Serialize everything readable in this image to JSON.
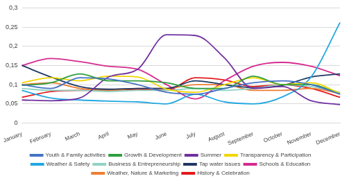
{
  "chart_data": {
    "type": "line",
    "categories": [
      "January",
      "February",
      "March",
      "April",
      "May",
      "June",
      "July",
      "August",
      "September",
      "October",
      "November",
      "December"
    ],
    "ylim": [
      0,
      0.3
    ],
    "yticks": [
      0,
      {
        "value": 0.05,
        "label": "0,05"
      },
      {
        "value": 0.1,
        "label": "0,1"
      },
      {
        "value": 0.15,
        "label": "0,15"
      },
      {
        "value": 0.2,
        "label": "0,2"
      },
      {
        "value": 0.25,
        "label": "0,25"
      },
      {
        "value": 0.3,
        "label": "0,3"
      }
    ],
    "grid": true,
    "legend": "bottom",
    "line_style": "smooth",
    "marker": "none",
    "series": [
      {
        "name": "Youth & Family activities",
        "color": "#4472c4",
        "values": [
          0.1,
          0.09,
          0.118,
          0.115,
          0.1,
          0.08,
          0.075,
          0.09,
          0.105,
          0.11,
          0.1,
          0.075
        ]
      },
      {
        "name": "Growth & Development",
        "color": "#2e9e3e",
        "values": [
          0.098,
          0.105,
          0.128,
          0.11,
          0.11,
          0.105,
          0.09,
          0.09,
          0.122,
          0.1,
          0.1,
          0.075
        ]
      },
      {
        "name": "Summer",
        "color": "#7030a0",
        "values": [
          0.06,
          0.058,
          0.065,
          0.12,
          0.14,
          0.23,
          0.228,
          0.17,
          0.09,
          0.095,
          0.058,
          0.048
        ]
      },
      {
        "name": "Transparency & Participation",
        "color": "#f2d600",
        "values": [
          0.105,
          0.118,
          0.11,
          0.122,
          0.12,
          0.088,
          0.08,
          0.1,
          0.118,
          0.1,
          0.105,
          0.077
        ]
      },
      {
        "name": "Weather & Safety",
        "color": "#22a7e0",
        "values": [
          0.085,
          0.065,
          0.06,
          0.057,
          0.055,
          0.05,
          0.075,
          0.055,
          0.05,
          0.068,
          0.12,
          0.262
        ]
      },
      {
        "name": "Business & Entrepreneurship",
        "color": "#8fd3c3",
        "values": [
          0.09,
          0.085,
          0.085,
          0.082,
          0.085,
          0.085,
          0.09,
          0.085,
          0.09,
          0.1,
          0.095,
          0.08
        ]
      },
      {
        "name": "Tap water issues",
        "color": "#1f3864",
        "values": [
          0.15,
          0.12,
          0.095,
          0.088,
          0.09,
          0.09,
          0.11,
          0.1,
          0.092,
          0.098,
          0.12,
          0.128
        ]
      },
      {
        "name": "Schools & Education",
        "color": "#d62a8f",
        "values": [
          0.15,
          0.168,
          0.16,
          0.148,
          0.14,
          0.1,
          0.063,
          0.11,
          0.148,
          0.158,
          0.148,
          0.123
        ]
      },
      {
        "name": "Weather, Nature & Marketing",
        "color": "#ed7d31",
        "values": [
          0.1,
          0.105,
          0.09,
          0.085,
          0.09,
          0.09,
          0.1,
          0.1,
          0.085,
          0.085,
          0.09,
          0.077
        ]
      },
      {
        "name": "History & Celebration",
        "color": "#e31a1c",
        "values": [
          0.067,
          0.082,
          0.085,
          0.085,
          0.088,
          0.085,
          0.118,
          0.112,
          0.095,
          0.1,
          0.09,
          0.067
        ]
      }
    ]
  }
}
